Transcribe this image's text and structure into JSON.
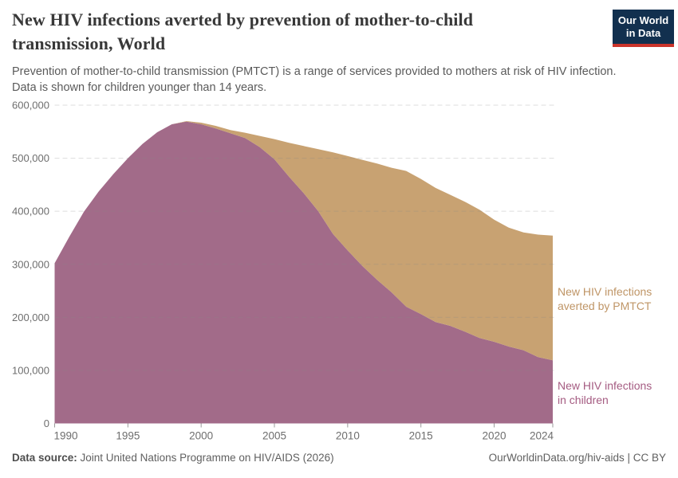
{
  "header": {
    "title": "New HIV infections averted by prevention of mother-to-child transmission, World",
    "subtitle_line1": "Prevention of mother-to-child transmission (PMTCT) is a range of services provided to mothers at risk of HIV infection.",
    "subtitle_line2": "Data is shown for children younger than 14 years.",
    "logo_line1": "Our World",
    "logo_line2": "in Data",
    "logo_bg": "#12304f",
    "logo_accent": "#cb342b"
  },
  "chart_data": {
    "type": "area",
    "stacked": true,
    "title": "New HIV infections averted by prevention of mother-to-child transmission, World",
    "xlabel": "",
    "ylabel": "",
    "grid": true,
    "legend_position": "right-inline",
    "xlim": [
      1990,
      2024
    ],
    "ylim": [
      0,
      600000
    ],
    "x": [
      1990,
      1991,
      1992,
      1993,
      1994,
      1995,
      1996,
      1997,
      1998,
      1999,
      2000,
      2001,
      2002,
      2003,
      2004,
      2005,
      2006,
      2007,
      2008,
      2009,
      2010,
      2011,
      2012,
      2013,
      2014,
      2015,
      2016,
      2017,
      2018,
      2019,
      2020,
      2021,
      2022,
      2023,
      2024
    ],
    "series": [
      {
        "name": "New HIV infections in children",
        "color": "#a26b89",
        "label_color": "#a55c82",
        "values": [
          302000,
          352000,
          399000,
          437000,
          470000,
          500000,
          527000,
          549000,
          564000,
          569000,
          564000,
          556000,
          547000,
          538000,
          521000,
          498000,
          465000,
          434000,
          400000,
          357000,
          326000,
          297000,
          271000,
          247000,
          220000,
          206000,
          191000,
          184000,
          173000,
          161000,
          154000,
          145000,
          138000,
          125000,
          119000
        ]
      },
      {
        "name": "New HIV infections averted by PMTCT",
        "color": "#c8a272",
        "label_color": "#bf9566",
        "values": [
          0,
          0,
          0,
          0,
          0,
          0,
          0,
          0,
          0,
          1000,
          3000,
          5000,
          6000,
          10000,
          21000,
          38000,
          64000,
          89000,
          117000,
          154000,
          178000,
          200000,
          219000,
          235000,
          256000,
          255000,
          253000,
          247000,
          245000,
          242000,
          230000,
          224000,
          222000,
          231000,
          235000
        ]
      }
    ],
    "yticks": [
      {
        "v": 0,
        "label": "0"
      },
      {
        "v": 100000,
        "label": "100,000"
      },
      {
        "v": 200000,
        "label": "200,000"
      },
      {
        "v": 300000,
        "label": "300,000"
      },
      {
        "v": 400000,
        "label": "400,000"
      },
      {
        "v": 500000,
        "label": "500,000"
      },
      {
        "v": 600000,
        "label": "600,000"
      }
    ],
    "xticks": [
      {
        "year": 1990,
        "label": "1990",
        "anchor": "start"
      },
      {
        "year": 1995,
        "label": "1995",
        "anchor": "middle"
      },
      {
        "year": 2000,
        "label": "2000",
        "anchor": "middle"
      },
      {
        "year": 2005,
        "label": "2005",
        "anchor": "middle"
      },
      {
        "year": 2010,
        "label": "2010",
        "anchor": "middle"
      },
      {
        "year": 2015,
        "label": "2015",
        "anchor": "middle"
      },
      {
        "year": 2020,
        "label": "2020",
        "anchor": "middle"
      },
      {
        "year": 2024,
        "label": "2024",
        "anchor": "end"
      }
    ]
  },
  "annotations": {
    "averted_label": "New HIV infections averted by PMTCT",
    "children_label": "New HIV infections in children"
  },
  "footer": {
    "source_prefix": "Data source:",
    "source_text": " Joint United Nations Programme on HIV/AIDS (2026)",
    "license_text": "OurWorldinData.org/hiv-aids | CC BY"
  }
}
